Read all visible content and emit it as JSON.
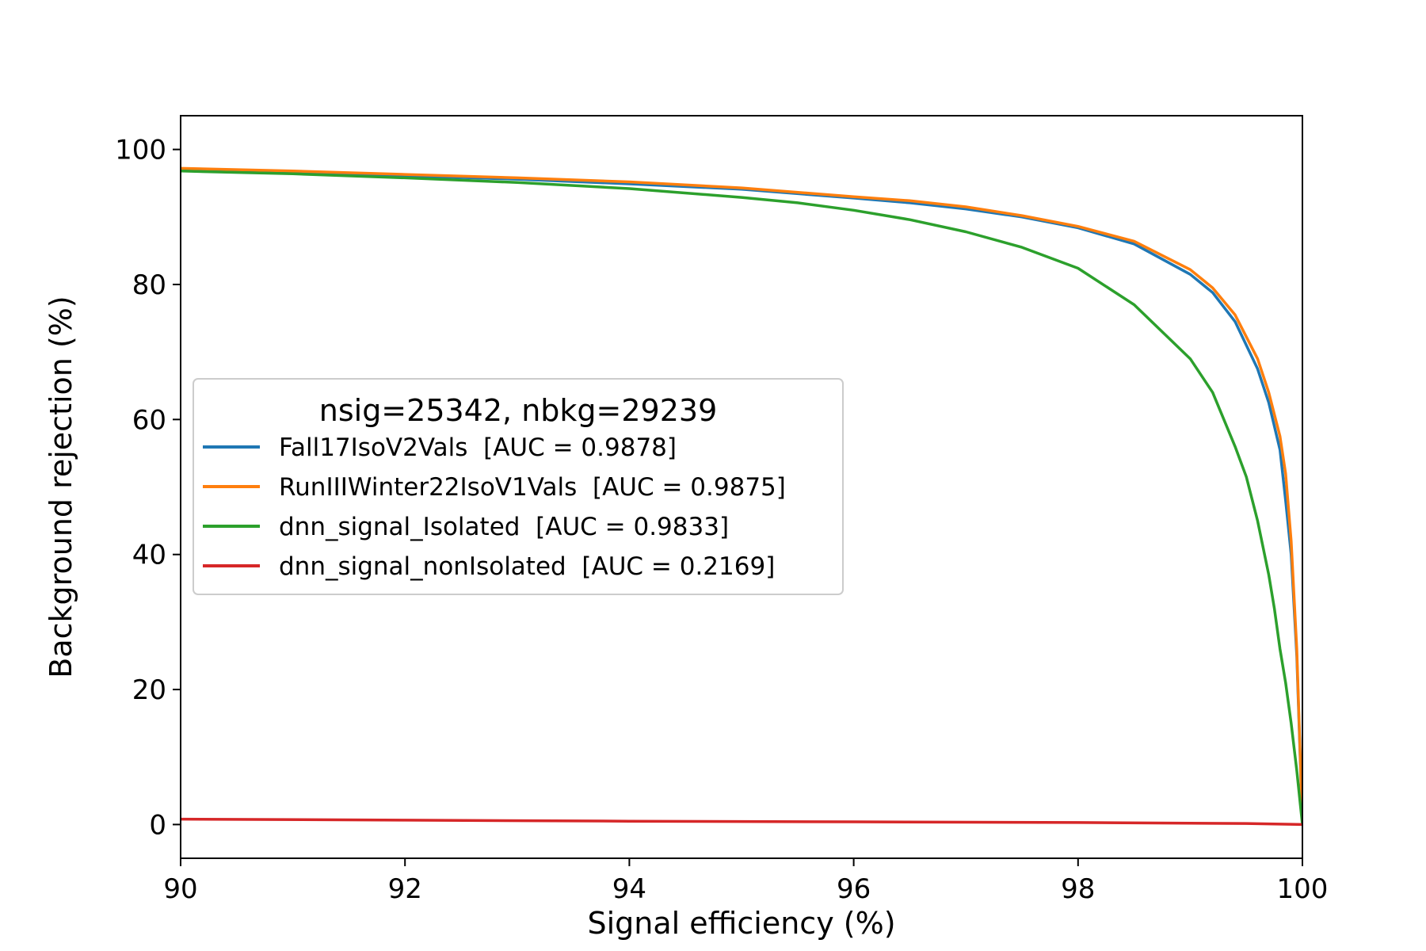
{
  "chart_data": {
    "type": "line",
    "title": "",
    "xlabel": "Signal efficiency (%)",
    "ylabel": "Background rejection (%)",
    "xlim": [
      90,
      100
    ],
    "ylim": [
      -5,
      105
    ],
    "xticks": [
      "90",
      "92",
      "94",
      "96",
      "98",
      "100"
    ],
    "yticks": [
      "0",
      "20",
      "40",
      "60",
      "80",
      "100"
    ],
    "grid": false,
    "legend": {
      "placement": "center-left",
      "title": "nsig=25342, nbkg=29239"
    },
    "series": [
      {
        "name": "Fall17IsoV2Vals  [AUC = 0.9878]",
        "color": "#1f77b4",
        "x": [
          90,
          91,
          92,
          93,
          94,
          95,
          96,
          96.5,
          97,
          97.5,
          98,
          98.5,
          99,
          99.2,
          99.4,
          99.6,
          99.7,
          99.8,
          99.85,
          99.9,
          99.95,
          100
        ],
        "y": [
          97.1,
          96.7,
          96.1,
          95.6,
          94.9,
          94.1,
          92.8,
          92.1,
          91.2,
          90.0,
          88.4,
          86.0,
          81.5,
          78.8,
          74.5,
          67.5,
          62.5,
          55.5,
          48.0,
          40.0,
          25.0,
          0
        ]
      },
      {
        "name": "RunIIIWinter22IsoV1Vals  [AUC = 0.9875]",
        "color": "#ff7f0e",
        "x": [
          90,
          91,
          92,
          93,
          94,
          95,
          96,
          96.5,
          97,
          97.5,
          98,
          98.5,
          99,
          99.2,
          99.4,
          99.6,
          99.7,
          99.8,
          99.85,
          99.9,
          99.95,
          100
        ],
        "y": [
          97.2,
          96.8,
          96.3,
          95.8,
          95.2,
          94.3,
          93.0,
          92.4,
          91.5,
          90.2,
          88.6,
          86.4,
          82.2,
          79.5,
          75.5,
          69.0,
          64.0,
          57.5,
          52.0,
          42.0,
          26.0,
          0
        ]
      },
      {
        "name": "dnn_signal_Isolated  [AUC = 0.9833]",
        "color": "#2ca02c",
        "x": [
          90,
          91,
          92,
          93,
          94,
          95,
          95.5,
          96,
          96.5,
          97,
          97.5,
          98,
          98.5,
          99,
          99.2,
          99.4,
          99.5,
          99.6,
          99.7,
          99.75,
          99.8,
          99.85,
          99.9,
          99.95,
          100
        ],
        "y": [
          96.8,
          96.4,
          95.8,
          95.1,
          94.2,
          92.9,
          92.1,
          91.0,
          89.6,
          87.8,
          85.5,
          82.4,
          77.0,
          69.0,
          64.0,
          56.0,
          51.5,
          45.0,
          37.0,
          32.0,
          26.0,
          21.0,
          15.0,
          8.0,
          0
        ]
      },
      {
        "name": "dnn_signal_nonIsolated  [AUC = 0.2169]",
        "color": "#d62728",
        "x": [
          90,
          92,
          94,
          96,
          98,
          99,
          99.5,
          100
        ],
        "y": [
          0.8,
          0.65,
          0.5,
          0.4,
          0.3,
          0.2,
          0.15,
          0
        ]
      }
    ]
  }
}
